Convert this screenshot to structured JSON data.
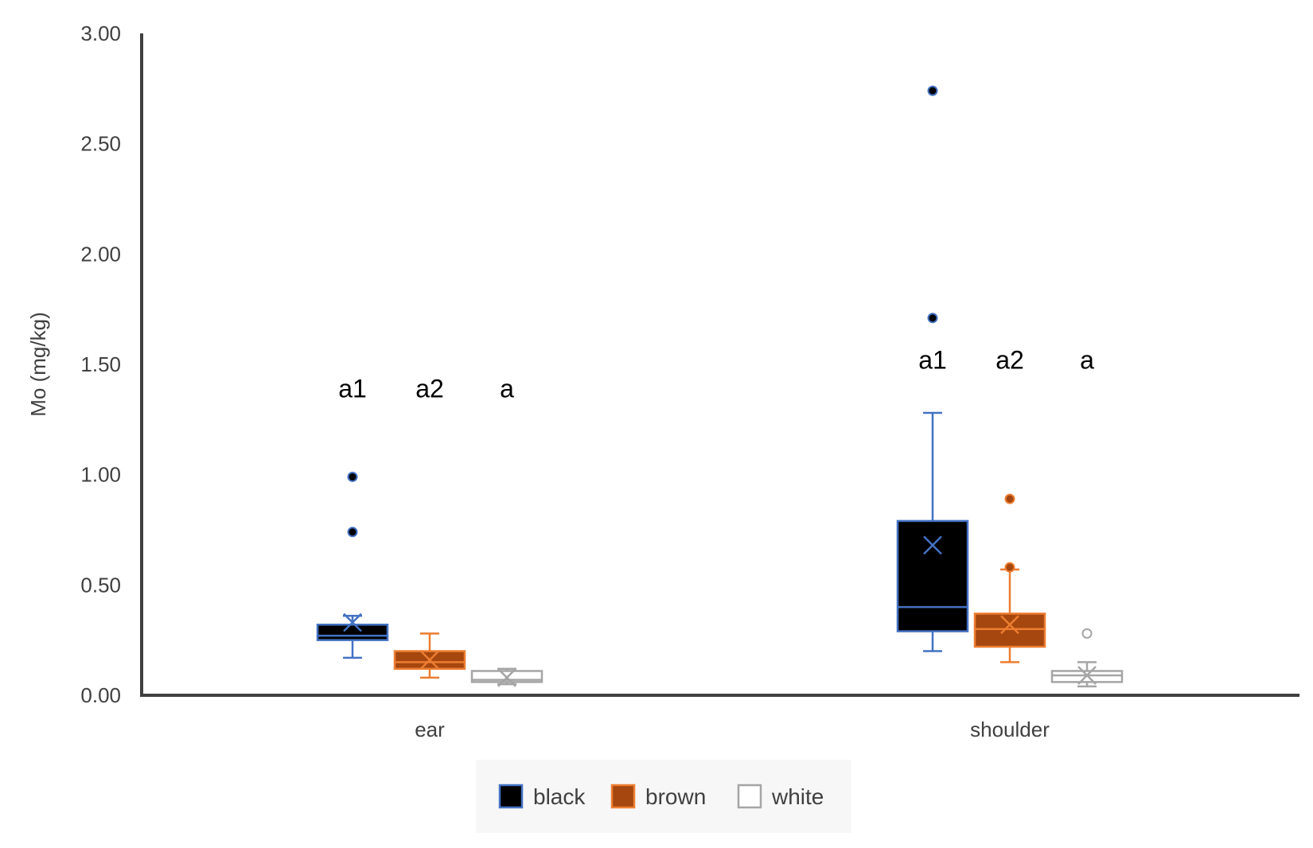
{
  "chart_data": {
    "type": "box",
    "title": "",
    "xlabel": "",
    "ylabel": "Mo (mg/kg)",
    "ylim": [
      0,
      3.0
    ],
    "y_ticks": [
      "0.00",
      "0.50",
      "1.00",
      "1.50",
      "2.00",
      "2.50",
      "3.00"
    ],
    "categories": [
      "ear",
      "shoulder"
    ],
    "grid": false,
    "legend_position": "bottom",
    "series": [
      {
        "name": "black",
        "fill": "#000000",
        "stroke": "#4472C4",
        "boxes": [
          {
            "min": 0.17,
            "q1": 0.25,
            "median": 0.27,
            "q3": 0.32,
            "max": 0.36,
            "mean": 0.33,
            "outliers": [
              0.74,
              0.99
            ]
          },
          {
            "min": 0.2,
            "q1": 0.29,
            "median": 0.4,
            "q3": 0.79,
            "max": 1.28,
            "mean": 0.68,
            "outliers": [
              1.71,
              2.74
            ]
          }
        ]
      },
      {
        "name": "brown",
        "fill": "#A5470E",
        "stroke": "#ED7D31",
        "boxes": [
          {
            "min": 0.08,
            "q1": 0.12,
            "median": 0.15,
            "q3": 0.2,
            "max": 0.28,
            "mean": 0.16,
            "outliers": []
          },
          {
            "min": 0.15,
            "q1": 0.22,
            "median": 0.3,
            "q3": 0.37,
            "max": 0.57,
            "mean": 0.32,
            "outliers": [
              0.58,
              0.89
            ]
          }
        ]
      },
      {
        "name": "white",
        "fill": "#ffffff",
        "stroke": "#A5A5A5",
        "boxes": [
          {
            "min": 0.05,
            "q1": 0.06,
            "median": 0.07,
            "q3": 0.11,
            "max": 0.12,
            "mean": 0.08,
            "outliers": []
          },
          {
            "min": 0.04,
            "q1": 0.06,
            "median": 0.09,
            "q3": 0.11,
            "max": 0.15,
            "mean": 0.09,
            "outliers": [
              0.28
            ]
          }
        ]
      }
    ],
    "annotations": [
      {
        "category": "ear",
        "series": "black",
        "text": "a1",
        "y": 1.35
      },
      {
        "category": "ear",
        "series": "brown",
        "text": "a2",
        "y": 1.35
      },
      {
        "category": "ear",
        "series": "white",
        "text": "a",
        "y": 1.35
      },
      {
        "category": "shoulder",
        "series": "black",
        "text": "a1",
        "y": 1.48
      },
      {
        "category": "shoulder",
        "series": "brown",
        "text": "a2",
        "y": 1.48
      },
      {
        "category": "shoulder",
        "series": "white",
        "text": "a",
        "y": 1.48
      }
    ],
    "legend": [
      {
        "label": "black",
        "fill": "#000000",
        "stroke": "#4472C4"
      },
      {
        "label": "brown",
        "fill": "#A5470E",
        "stroke": "#ED7D31"
      },
      {
        "label": "white",
        "fill": "#ffffff",
        "stroke": "#A5A5A5"
      }
    ],
    "colors": {
      "axis": "#404040",
      "text": "#404040",
      "legend_bg": "#F7F7F7"
    }
  }
}
